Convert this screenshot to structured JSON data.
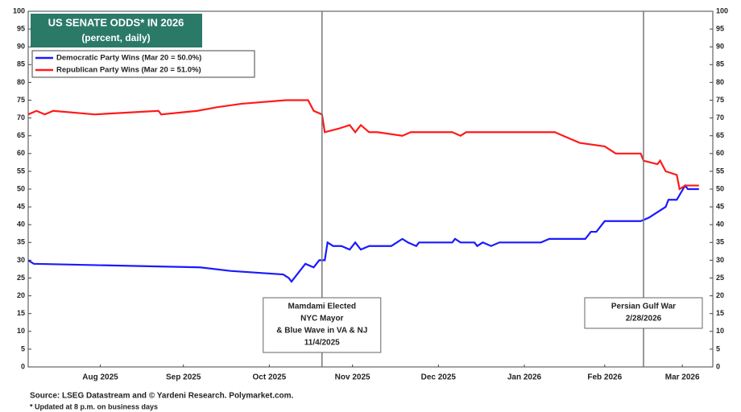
{
  "chart_data": {
    "type": "line",
    "title": "US SENATE ODDS* IN 2026",
    "subtitle": "(percent, daily)",
    "xlim": [
      0,
      247
    ],
    "xticks": [
      {
        "value": 26,
        "label": "Aug 2025"
      },
      {
        "value": 56,
        "label": "Sep 2025"
      },
      {
        "value": 87,
        "label": "Oct 2025"
      },
      {
        "value": 117,
        "label": "Nov 2025"
      },
      {
        "value": 148,
        "label": "Dec 2025"
      },
      {
        "value": 179,
        "label": "Jan 2026"
      },
      {
        "value": 208,
        "label": "Feb 2026"
      },
      {
        "value": 236,
        "label": "Mar 2026"
      }
    ],
    "ylim": [
      0,
      100
    ],
    "yticks": [
      0,
      5,
      10,
      15,
      20,
      25,
      30,
      35,
      40,
      45,
      50,
      55,
      60,
      65,
      70,
      75,
      80,
      85,
      90,
      95,
      100
    ],
    "series": [
      {
        "name": "Democratic Party Wins (Mar 20 = 50.0%)",
        "color": "#1a1aff",
        "x": [
          0,
          2,
          62,
          73,
          92,
          94,
          95,
          97,
          100,
          103,
          105,
          107,
          108,
          110,
          113,
          116,
          118,
          120,
          123,
          131,
          133,
          135,
          137,
          140,
          141,
          153,
          154,
          156,
          161,
          162,
          164,
          167,
          170,
          185,
          188,
          201,
          203,
          205,
          208,
          221,
          224,
          226,
          230,
          231,
          234,
          237,
          238,
          242
        ],
        "values": [
          30,
          29,
          28,
          27,
          26,
          25,
          24,
          26,
          29,
          28,
          30,
          30,
          35,
          34,
          34,
          33,
          35,
          33,
          34,
          34,
          35,
          36,
          35,
          34,
          35,
          35,
          36,
          35,
          35,
          34,
          35,
          34,
          35,
          35,
          36,
          36,
          38,
          38,
          41,
          41,
          42,
          43,
          45,
          47,
          47,
          51,
          50,
          50
        ]
      },
      {
        "name": "Republican Party Wins (Mar 20 = 51.0%)",
        "color": "#ff1a1a",
        "x": [
          0,
          3,
          6,
          9,
          24,
          47,
          48,
          61,
          68,
          77,
          93,
          101,
          103,
          106,
          107,
          112,
          116,
          118,
          120,
          123,
          126,
          135,
          138,
          153,
          156,
          158,
          190,
          193,
          199,
          208,
          212,
          221,
          222,
          227,
          228,
          230,
          234,
          235,
          237,
          242
        ],
        "values": [
          71,
          72,
          71,
          72,
          71,
          72,
          71,
          72,
          73,
          74,
          75,
          75,
          72,
          71,
          66,
          67,
          68,
          66,
          68,
          66,
          66,
          65,
          66,
          66,
          65,
          66,
          66,
          65,
          63,
          62,
          60,
          60,
          58,
          57,
          58,
          55,
          54,
          50,
          51,
          51
        ]
      }
    ],
    "annotations": [
      {
        "x": 106,
        "lines": [
          "Mamdami Elected",
          "NYC Mayor",
          "& Blue Wave in VA & NJ",
          "11/4/2025"
        ]
      },
      {
        "x": 222,
        "lines": [
          "Persian Gulf War",
          "2/28/2026"
        ]
      }
    ],
    "source": "Source: LSEG Datastream and © Yardeni Research. Polymarket.com.",
    "footnote": "* Updated at 8 p.m. on business days"
  }
}
